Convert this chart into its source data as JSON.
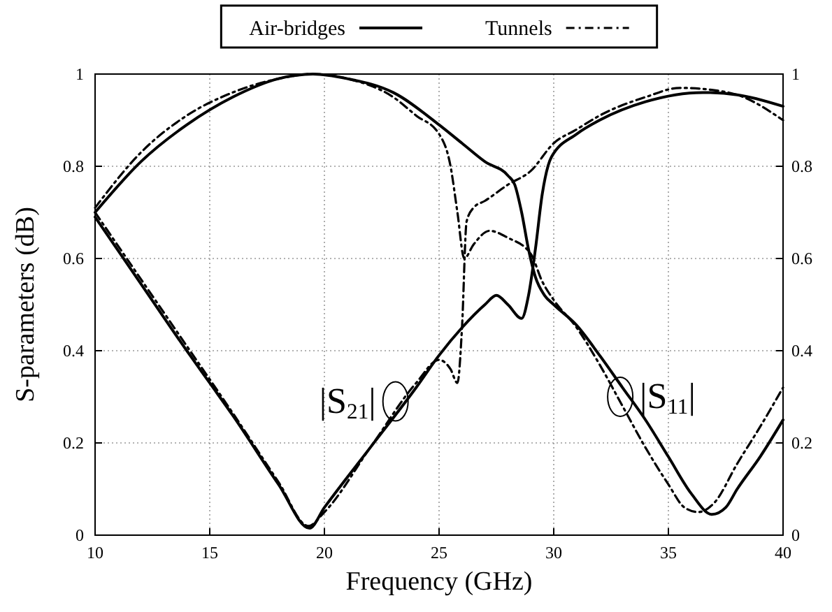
{
  "chart_data": {
    "type": "line",
    "xlabel": "Frequency (GHz)",
    "ylabel": "S-parameters (dB)",
    "xlim": [
      10,
      40
    ],
    "xticks": [
      10,
      15,
      20,
      25,
      30,
      35,
      40
    ],
    "ylim": [
      0,
      1
    ],
    "yticks": [
      0,
      0.2,
      0.4,
      0.6,
      0.8,
      1
    ],
    "y2lim": [
      0,
      1
    ],
    "y2ticks": [
      0,
      0.2,
      0.4,
      0.6,
      0.8,
      1
    ],
    "grid": true,
    "legend": "top",
    "marker": "none",
    "series": [
      {
        "name": "Air-bridges",
        "color": "#000000",
        "line_style": "solid",
        "x": [
          10,
          12,
          14,
          16,
          18,
          19.5,
          21,
          23,
          25,
          26,
          27,
          28,
          28.3,
          28.6,
          28.9,
          29.2,
          29.6,
          30,
          31,
          32,
          33,
          34,
          35,
          36,
          36.9,
          37.5,
          38,
          39,
          40
        ],
        "values": [
          0.7,
          0.81,
          0.89,
          0.95,
          0.99,
          1.0,
          0.99,
          0.96,
          0.89,
          0.85,
          0.81,
          0.78,
          0.76,
          0.7,
          0.62,
          0.56,
          0.52,
          0.5,
          0.455,
          0.39,
          0.32,
          0.25,
          0.17,
          0.09,
          0.045,
          0.06,
          0.1,
          0.17,
          0.25
        ]
      },
      {
        "color": "#000000",
        "line_style": "solid",
        "x": [
          10,
          12,
          14,
          15,
          16,
          18,
          19.35,
          20,
          22,
          24,
          25,
          26,
          27,
          27.5,
          28,
          28.6,
          28.9,
          29.2,
          29.5,
          29.9,
          31,
          32,
          34,
          36.5,
          38,
          40
        ],
        "values": [
          0.69,
          0.545,
          0.4,
          0.33,
          0.26,
          0.11,
          0.015,
          0.06,
          0.19,
          0.32,
          0.39,
          0.45,
          0.5,
          0.52,
          0.5,
          0.47,
          0.52,
          0.62,
          0.74,
          0.82,
          0.87,
          0.9,
          0.94,
          0.96,
          0.955,
          0.93
        ]
      },
      {
        "name": "Tunnels",
        "color": "#000000",
        "line_style": "dashdot",
        "x": [
          10,
          12,
          14,
          16,
          18,
          19.5,
          21,
          23,
          24,
          25,
          25.5,
          25.8,
          26.1,
          26.5,
          27.2,
          28,
          29,
          29.5,
          30,
          31,
          32,
          33,
          34,
          35,
          35.7,
          36.3,
          37,
          38,
          39,
          40
        ],
        "values": [
          0.71,
          0.83,
          0.91,
          0.96,
          0.99,
          1.0,
          0.99,
          0.95,
          0.91,
          0.87,
          0.8,
          0.7,
          0.6,
          0.63,
          0.66,
          0.645,
          0.61,
          0.55,
          0.51,
          0.45,
          0.37,
          0.28,
          0.19,
          0.11,
          0.06,
          0.05,
          0.07,
          0.155,
          0.235,
          0.32
        ]
      },
      {
        "color": "#000000",
        "line_style": "dashdot",
        "x": [
          10,
          12,
          14,
          16,
          18,
          19.3,
          20,
          22,
          24,
          25,
          25.5,
          25.8,
          26,
          26.2,
          26.5,
          27,
          28,
          29,
          30,
          31,
          32,
          34,
          35.5,
          37,
          38,
          40
        ],
        "values": [
          0.7,
          0.555,
          0.41,
          0.265,
          0.115,
          0.02,
          0.05,
          0.19,
          0.33,
          0.38,
          0.36,
          0.33,
          0.45,
          0.68,
          0.71,
          0.725,
          0.76,
          0.79,
          0.85,
          0.88,
          0.91,
          0.95,
          0.97,
          0.965,
          0.955,
          0.9
        ]
      }
    ],
    "annotations": [
      {
        "text": "|S$_{21}$|",
        "x": 23.1,
        "y": 0.29
      },
      {
        "text": "|S$_{11}$|",
        "x": 32.9,
        "y": 0.3
      }
    ]
  }
}
